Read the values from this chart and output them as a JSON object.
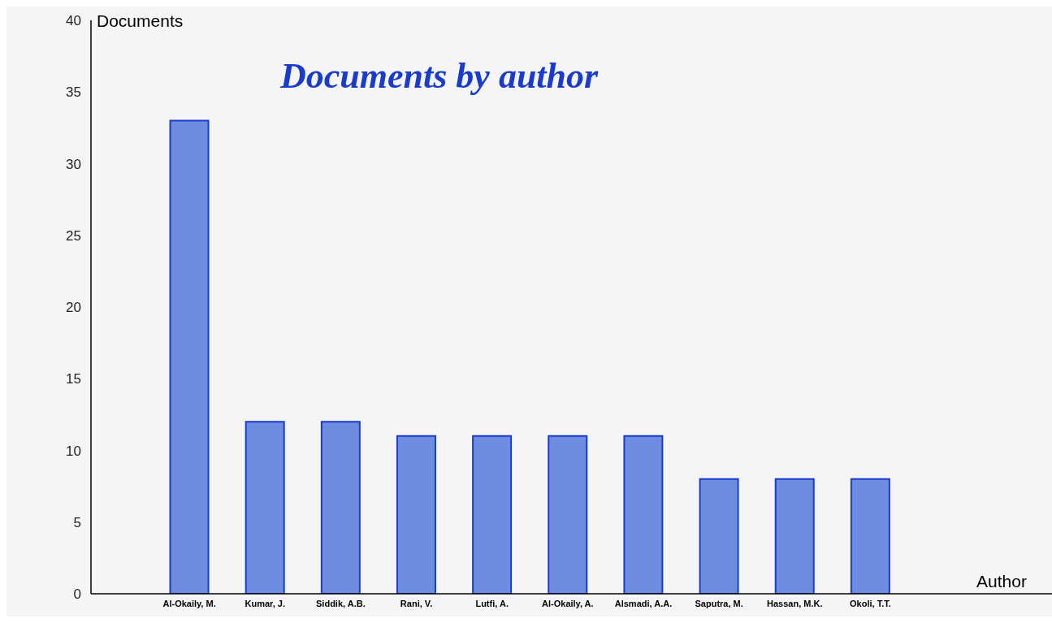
{
  "chart_data": {
    "type": "bar",
    "title": "Documents by author",
    "xlabel": "Author",
    "ylabel": "Documents",
    "categories": [
      "Al-Okaily, M.",
      "Kumar, J.",
      "Siddik, A.B.",
      "Rani, V.",
      "Lutfi, A.",
      "Al-Okaily, A.",
      "Alsmadi, A.A.",
      "Saputra, M.",
      "Hassan, M.K.",
      "Okoli, T.T."
    ],
    "values": [
      33,
      12,
      12,
      11,
      11,
      11,
      11,
      8,
      8,
      8
    ],
    "color": "#6f8de0",
    "ylim": [
      0,
      40
    ],
    "yticks": [
      0,
      5,
      10,
      15,
      20,
      25,
      30,
      35,
      40
    ],
    "grid": false,
    "legend": false
  }
}
